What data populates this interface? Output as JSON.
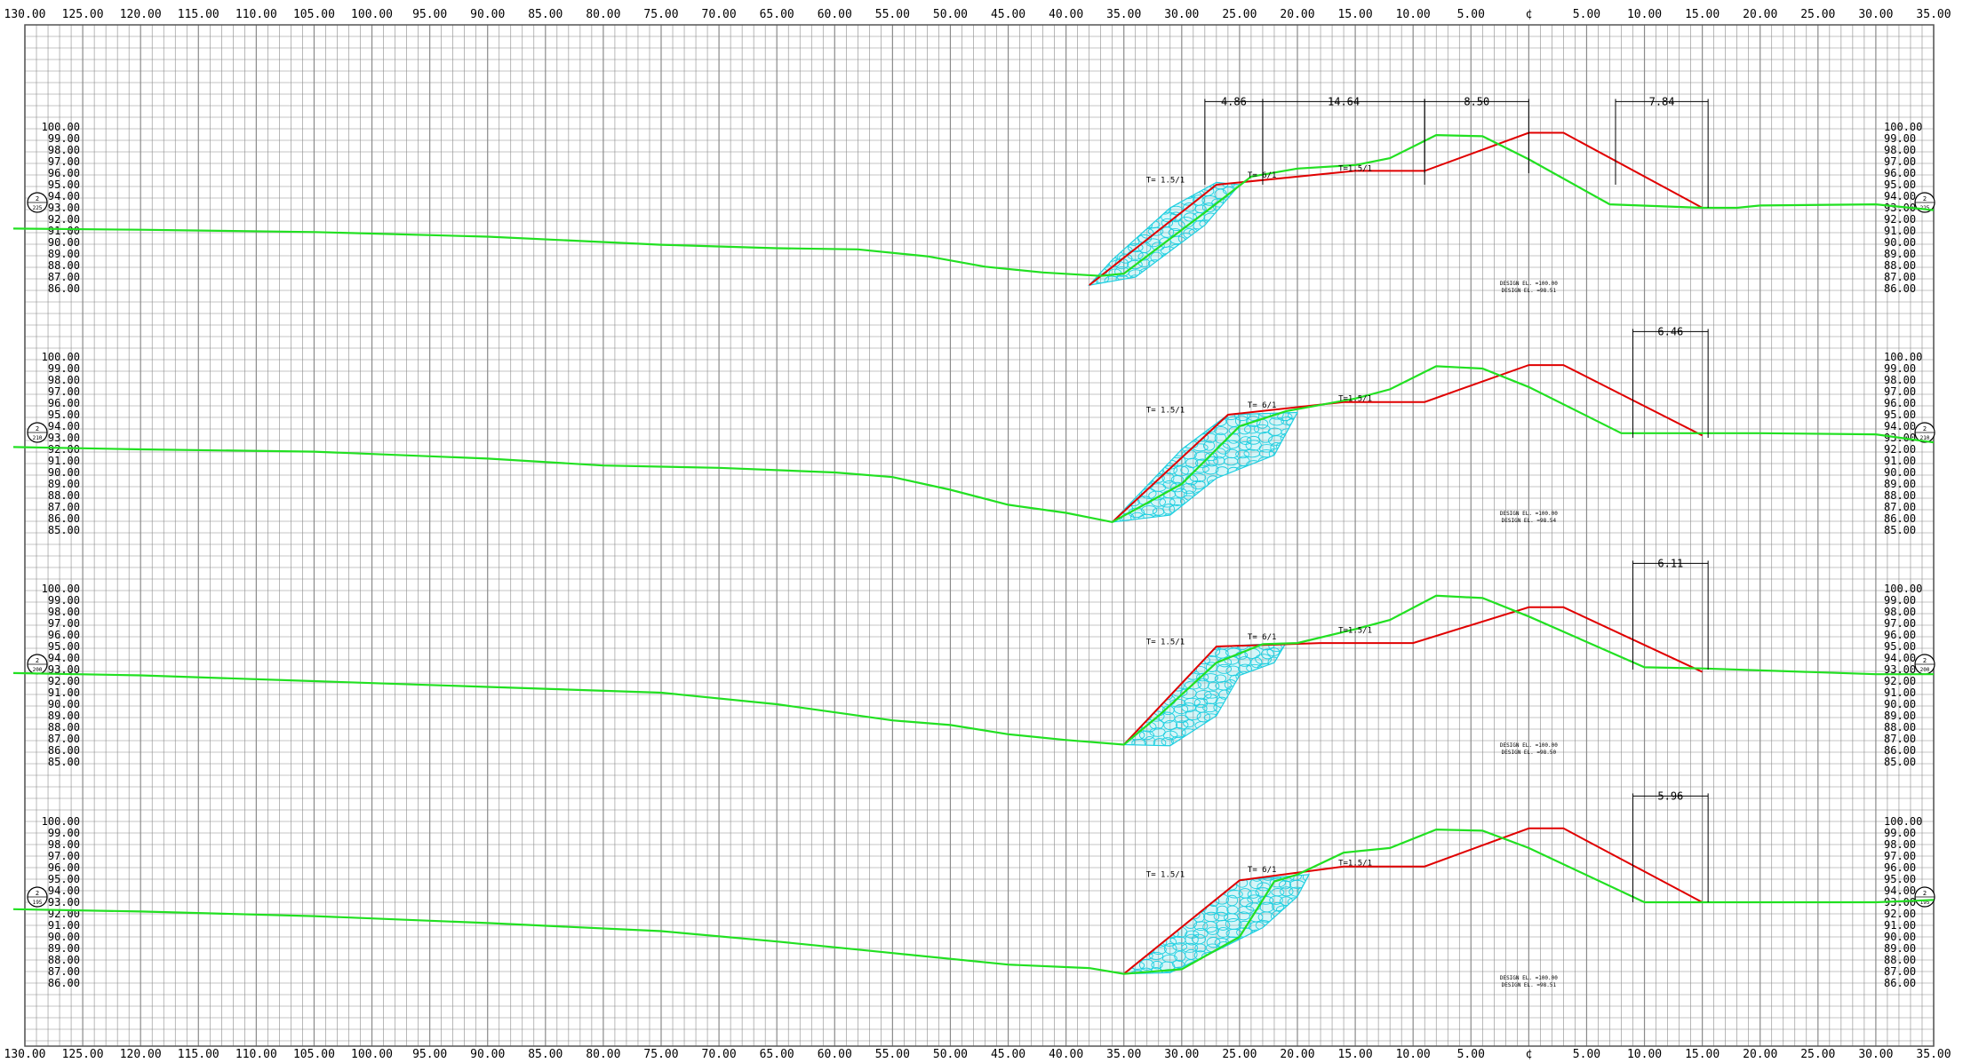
{
  "title": "",
  "colors": {
    "grid": "#8a8a8a",
    "ground": "#22e022",
    "design": "#e00000",
    "fill": "#1ecfe0",
    "text": "#000000"
  },
  "x_axis": {
    "labels": [
      "130.00",
      "125.00",
      "120.00",
      "115.00",
      "110.00",
      "105.00",
      "100.00",
      "95.00",
      "90.00",
      "85.00",
      "80.00",
      "75.00",
      "70.00",
      "65.00",
      "60.00",
      "55.00",
      "50.00",
      "45.00",
      "40.00",
      "35.00",
      "30.00",
      "25.00",
      "20.00",
      "15.00",
      "10.00",
      "5.00",
      "¢",
      "5.00",
      "10.00",
      "15.00",
      "20.00",
      "25.00",
      "30.00",
      "35.00"
    ]
  },
  "sections": [
    {
      "elev_labels": [
        "100.00",
        "99.00",
        "98.00",
        "97.00",
        "96.00",
        "95.00",
        "94.00",
        "93.00",
        "92.00",
        "91.00",
        "90.00",
        "89.00",
        "88.00",
        "87.00",
        "86.00"
      ],
      "station_left": {
        "top": "2",
        "bottom": "225"
      },
      "station_right": {
        "top": "2",
        "bottom": "225"
      },
      "dims": [
        "4.86",
        "14.64",
        "8.50",
        "7.84"
      ],
      "slope_labels": [
        "T= 1.5/1",
        "T= 6/1",
        "T=1.5/1"
      ],
      "design_note_1": "DESIGN EL. =100.00",
      "design_note_2": "DESIGN EL. =98.51",
      "ground": [
        [
          -131,
          91.2
        ],
        [
          -120,
          91.1
        ],
        [
          -105,
          90.9
        ],
        [
          -90,
          90.5
        ],
        [
          -75,
          89.8
        ],
        [
          -65,
          89.5
        ],
        [
          -58,
          89.4
        ],
        [
          -52,
          88.8
        ],
        [
          -47,
          87.9
        ],
        [
          -42,
          87.4
        ],
        [
          -37,
          87.1
        ],
        [
          -35,
          87.3
        ],
        [
          -28,
          92.6
        ],
        [
          -24,
          95.7
        ],
        [
          -20,
          96.4
        ],
        [
          -15,
          96.7
        ],
        [
          -12,
          97.3
        ],
        [
          -8,
          99.3
        ],
        [
          -4,
          99.2
        ],
        [
          0,
          97.2
        ],
        [
          7,
          93.3
        ],
        [
          15,
          93.0
        ],
        [
          18,
          93.0
        ],
        [
          20,
          93.2
        ],
        [
          30,
          93.3
        ],
        [
          35,
          92.8
        ]
      ],
      "design": [
        [
          -38,
          86.3
        ],
        [
          -27,
          95.0
        ],
        [
          -15,
          96.2
        ],
        [
          -9,
          96.2
        ],
        [
          0,
          99.5
        ],
        [
          3,
          99.5
        ],
        [
          15,
          93.0
        ]
      ],
      "fill_polygon": [
        [
          -38,
          86.3
        ],
        [
          -34,
          87.0
        ],
        [
          -28,
          91.5
        ],
        [
          -25,
          95.0
        ],
        [
          -27,
          95.2
        ],
        [
          -31,
          93.0
        ],
        [
          -36,
          88.5
        ]
      ]
    },
    {
      "elev_labels": [
        "100.00",
        "99.00",
        "98.00",
        "97.00",
        "96.00",
        "95.00",
        "94.00",
        "93.00",
        "92.00",
        "91.00",
        "90.00",
        "89.00",
        "88.00",
        "87.00",
        "86.00",
        "85.00"
      ],
      "station_left": {
        "top": "2",
        "bottom": "210"
      },
      "station_right": {
        "top": "2",
        "bottom": "210"
      },
      "dims": [
        "6.46"
      ],
      "slope_labels": [
        "T= 1.5/1",
        "T= 6/1",
        "T=1.5/1"
      ],
      "design_note_1": "DESIGN EL. =100.00",
      "design_note_2": "DESIGN EL. =98.54",
      "ground": [
        [
          -131,
          92.2
        ],
        [
          -120,
          92.0
        ],
        [
          -105,
          91.8
        ],
        [
          -90,
          91.2
        ],
        [
          -80,
          90.6
        ],
        [
          -70,
          90.4
        ],
        [
          -60,
          90.0
        ],
        [
          -55,
          89.6
        ],
        [
          -50,
          88.5
        ],
        [
          -45,
          87.2
        ],
        [
          -40,
          86.5
        ],
        [
          -36,
          85.7
        ],
        [
          -30,
          89.0
        ],
        [
          -25,
          94.0
        ],
        [
          -21,
          95.3
        ],
        [
          -15,
          96.4
        ],
        [
          -12,
          97.2
        ],
        [
          -8,
          99.2
        ],
        [
          -4,
          99.0
        ],
        [
          0,
          97.4
        ],
        [
          8,
          93.4
        ],
        [
          15,
          93.4
        ],
        [
          20,
          93.4
        ],
        [
          30,
          93.3
        ],
        [
          35,
          92.6
        ]
      ],
      "design": [
        [
          -36,
          85.7
        ],
        [
          -26,
          95.0
        ],
        [
          -16,
          96.1
        ],
        [
          -9,
          96.1
        ],
        [
          0,
          99.3
        ],
        [
          3,
          99.3
        ],
        [
          15,
          93.2
        ]
      ],
      "fill_polygon": [
        [
          -36,
          85.7
        ],
        [
          -31,
          86.3
        ],
        [
          -27,
          89.5
        ],
        [
          -22,
          91.5
        ],
        [
          -20,
          95.2
        ],
        [
          -26,
          95.0
        ],
        [
          -30,
          92.0
        ]
      ]
    },
    {
      "elev_labels": [
        "100.00",
        "99.00",
        "98.00",
        "97.00",
        "96.00",
        "95.00",
        "94.00",
        "93.00",
        "92.00",
        "91.00",
        "90.00",
        "89.00",
        "88.00",
        "87.00",
        "86.00",
        "85.00"
      ],
      "station_left": {
        "top": "2",
        "bottom": "200"
      },
      "station_right": {
        "top": "2",
        "bottom": "200"
      },
      "dims": [
        "6.11"
      ],
      "slope_labels": [
        "T= 1.5/1",
        "T= 6/1",
        "T=1.5/1"
      ],
      "design_note_1": "DESIGN EL. =100.00",
      "design_note_2": "DESIGN EL. =98.50",
      "ground": [
        [
          -131,
          92.7
        ],
        [
          -120,
          92.5
        ],
        [
          -105,
          92.0
        ],
        [
          -90,
          91.5
        ],
        [
          -75,
          91.0
        ],
        [
          -65,
          90.0
        ],
        [
          -55,
          88.6
        ],
        [
          -50,
          88.2
        ],
        [
          -45,
          87.4
        ],
        [
          -40,
          86.9
        ],
        [
          -35,
          86.5
        ],
        [
          -32,
          89.0
        ],
        [
          -27,
          93.6
        ],
        [
          -23,
          95.2
        ],
        [
          -20,
          95.3
        ],
        [
          -15,
          96.5
        ],
        [
          -12,
          97.3
        ],
        [
          -8,
          99.4
        ],
        [
          -4,
          99.2
        ],
        [
          0,
          97.6
        ],
        [
          10,
          93.2
        ],
        [
          15,
          93.1
        ],
        [
          30,
          92.6
        ],
        [
          35,
          92.6
        ]
      ],
      "design": [
        [
          -35,
          86.5
        ],
        [
          -27,
          95.0
        ],
        [
          -18,
          95.3
        ],
        [
          -10,
          95.3
        ],
        [
          0,
          98.4
        ],
        [
          3,
          98.4
        ],
        [
          15,
          92.8
        ]
      ],
      "fill_polygon": [
        [
          -35,
          86.5
        ],
        [
          -31,
          86.4
        ],
        [
          -27,
          89.0
        ],
        [
          -25,
          92.5
        ],
        [
          -22,
          93.6
        ],
        [
          -21,
          95.3
        ],
        [
          -27,
          95.0
        ]
      ]
    },
    {
      "elev_labels": [
        "100.00",
        "99.00",
        "98.00",
        "97.00",
        "96.00",
        "95.00",
        "94.00",
        "93.00",
        "92.00",
        "91.00",
        "90.00",
        "89.00",
        "88.00",
        "87.00",
        "86.00"
      ],
      "station_left": {
        "top": "2",
        "bottom": "195"
      },
      "station_right": {
        "top": "2",
        "bottom": "195"
      },
      "dims": [
        "5.96"
      ],
      "slope_labels": [
        "T= 1.5/1",
        "T= 6/1",
        "T=1.5/1"
      ],
      "design_note_1": "DESIGN EL. =100.00",
      "design_note_2": "DESIGN EL. =98.51",
      "ground": [
        [
          -131,
          92.4
        ],
        [
          -120,
          92.2
        ],
        [
          -105,
          91.8
        ],
        [
          -90,
          91.2
        ],
        [
          -75,
          90.5
        ],
        [
          -65,
          89.6
        ],
        [
          -55,
          88.6
        ],
        [
          -45,
          87.6
        ],
        [
          -38,
          87.3
        ],
        [
          -35,
          86.8
        ],
        [
          -30,
          87.2
        ],
        [
          -25,
          90.0
        ],
        [
          -22,
          94.8
        ],
        [
          -20,
          95.4
        ],
        [
          -16,
          97.3
        ],
        [
          -12,
          97.7
        ],
        [
          -8,
          99.3
        ],
        [
          -4,
          99.2
        ],
        [
          0,
          97.7
        ],
        [
          10,
          93.0
        ],
        [
          15,
          93.0
        ],
        [
          30,
          93.0
        ],
        [
          35,
          93.2
        ]
      ],
      "design": [
        [
          -35,
          86.8
        ],
        [
          -25,
          94.9
        ],
        [
          -16,
          96.1
        ],
        [
          -9,
          96.1
        ],
        [
          0,
          99.4
        ],
        [
          3,
          99.4
        ],
        [
          15,
          93.0
        ]
      ],
      "fill_polygon": [
        [
          -35,
          86.8
        ],
        [
          -31,
          86.9
        ],
        [
          -27,
          88.8
        ],
        [
          -23,
          90.8
        ],
        [
          -20,
          93.5
        ],
        [
          -19,
          95.4
        ],
        [
          -25,
          94.9
        ]
      ]
    }
  ]
}
